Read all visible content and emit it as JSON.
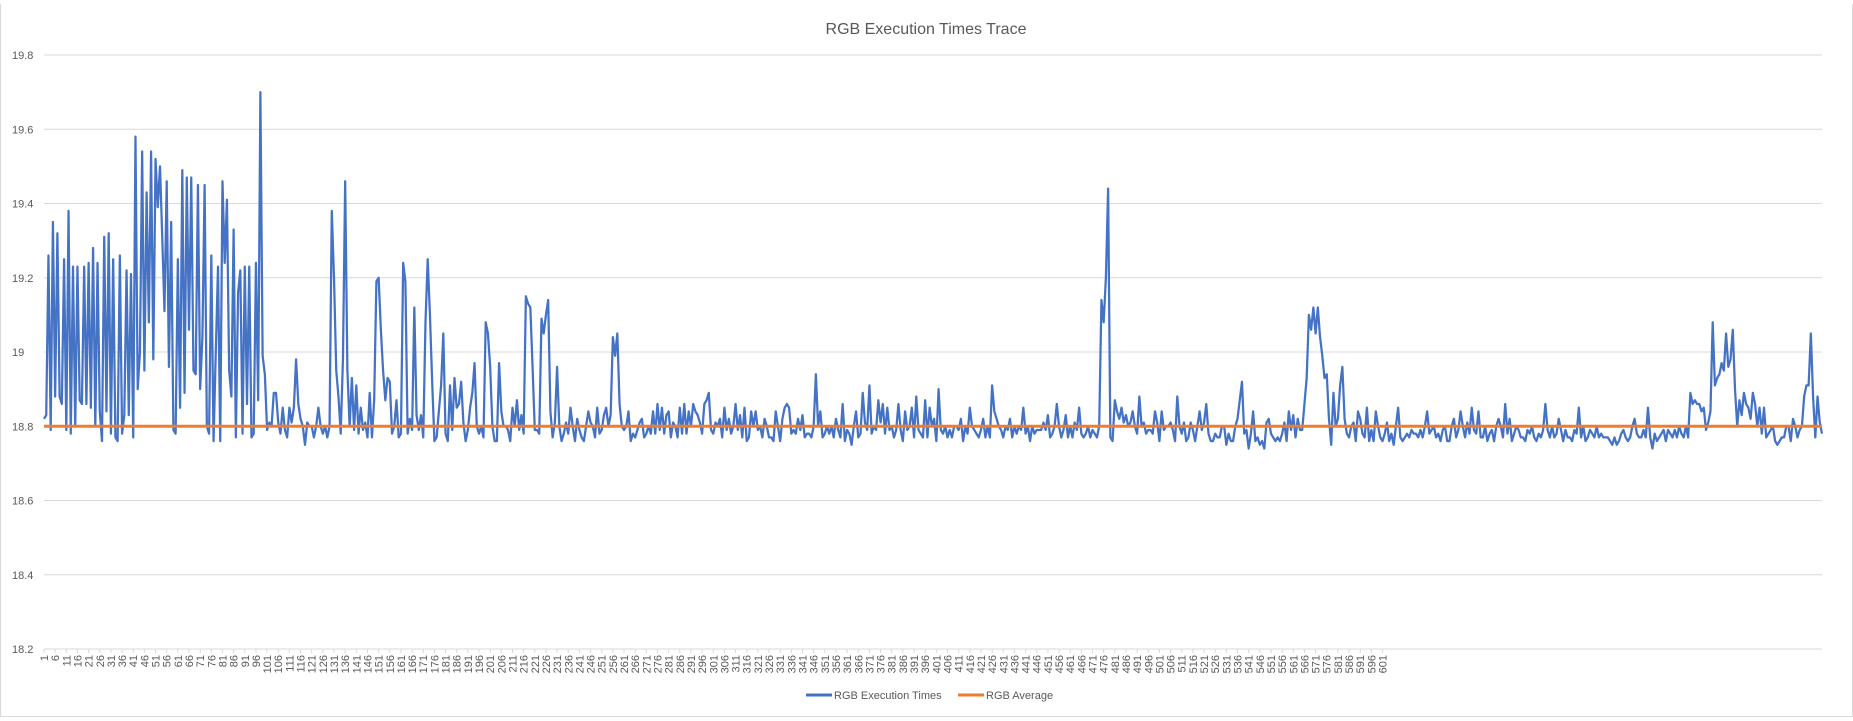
{
  "chart_data": {
    "type": "line",
    "title": "RGB Execution Times Trace",
    "xlabel": "",
    "ylabel": "",
    "x_range": [
      1,
      603
    ],
    "x_tick_step": 5,
    "ylim": [
      18.2,
      19.8
    ],
    "y_ticks": [
      "19.8",
      "19.6",
      "19.4",
      "19.2",
      "19",
      "18.8",
      "18.6",
      "18.4",
      "18.2"
    ],
    "grid": "horizontal",
    "legend_position": "bottom",
    "series": [
      {
        "name": "RGB Execution Times",
        "color": "#4472C4",
        "values": [
          18.82,
          18.83,
          19.26,
          18.79,
          19.35,
          18.88,
          19.32,
          18.88,
          18.86,
          19.25,
          18.79,
          19.38,
          18.78,
          19.23,
          18.8,
          19.23,
          18.87,
          18.86,
          19.23,
          18.86,
          19.24,
          18.85,
          19.28,
          18.8,
          19.24,
          18.84,
          18.76,
          19.31,
          18.84,
          19.32,
          18.78,
          19.25,
          18.77,
          18.76,
          19.26,
          18.78,
          18.83,
          19.22,
          18.83,
          19.21,
          18.77,
          19.58,
          18.9,
          19.0,
          19.54,
          18.95,
          19.43,
          19.08,
          19.54,
          18.98,
          19.52,
          19.39,
          19.5,
          19.31,
          19.11,
          19.46,
          18.96,
          19.35,
          18.79,
          18.78,
          19.25,
          18.85,
          19.49,
          18.89,
          19.47,
          19.06,
          19.47,
          18.95,
          18.94,
          19.45,
          18.9,
          19.04,
          19.45,
          18.8,
          18.78,
          19.26,
          18.76,
          19.0,
          19.23,
          18.76,
          19.46,
          19.24,
          19.41,
          18.95,
          18.88,
          19.33,
          18.77,
          19.16,
          19.22,
          18.78,
          19.23,
          18.86,
          19.23,
          18.77,
          18.78,
          19.24,
          18.87,
          19.7,
          18.99,
          18.94,
          18.79,
          18.81,
          18.8,
          18.89,
          18.89,
          18.81,
          18.78,
          18.85,
          18.79,
          18.77,
          18.85,
          18.81,
          18.85,
          18.98,
          18.86,
          18.82,
          18.8,
          18.75,
          18.81,
          18.8,
          18.8,
          18.77,
          18.8,
          18.85,
          18.8,
          18.78,
          18.8,
          18.77,
          18.8,
          19.38,
          19.2,
          18.95,
          18.88,
          18.78,
          18.98,
          19.46,
          18.95,
          18.8,
          18.93,
          18.79,
          18.91,
          18.78,
          18.85,
          18.79,
          18.81,
          18.77,
          18.89,
          18.77,
          18.87,
          19.19,
          19.2,
          19.06,
          18.95,
          18.87,
          18.93,
          18.92,
          18.78,
          18.8,
          18.87,
          18.77,
          18.78,
          19.24,
          19.19,
          18.78,
          18.82,
          18.79,
          19.12,
          18.83,
          18.79,
          18.83,
          18.77,
          19.08,
          19.25,
          19.1,
          18.92,
          18.76,
          18.77,
          18.84,
          18.91,
          19.05,
          18.78,
          18.76,
          18.91,
          18.79,
          18.93,
          18.85,
          18.86,
          18.92,
          18.81,
          18.76,
          18.79,
          18.85,
          18.89,
          18.97,
          18.8,
          18.78,
          18.8,
          18.77,
          19.08,
          19.05,
          18.96,
          18.8,
          18.76,
          18.76,
          18.97,
          18.84,
          18.8,
          18.8,
          18.79,
          18.76,
          18.85,
          18.8,
          18.87,
          18.79,
          18.83,
          18.78,
          19.15,
          19.13,
          19.12,
          18.96,
          18.79,
          18.79,
          18.78,
          19.09,
          19.05,
          19.1,
          19.14,
          18.84,
          18.77,
          18.81,
          18.96,
          18.8,
          18.76,
          18.78,
          18.81,
          18.78,
          18.85,
          18.8,
          18.76,
          18.82,
          18.79,
          18.77,
          18.76,
          18.8,
          18.84,
          18.81,
          18.8,
          18.77,
          18.85,
          18.78,
          18.79,
          18.83,
          18.85,
          18.8,
          18.83,
          19.04,
          18.99,
          19.05,
          18.86,
          18.8,
          18.79,
          18.8,
          18.84,
          18.76,
          18.78,
          18.77,
          18.79,
          18.81,
          18.82,
          18.77,
          18.78,
          18.8,
          18.78,
          18.84,
          18.78,
          18.86,
          18.79,
          18.85,
          18.78,
          18.83,
          18.84,
          18.77,
          18.81,
          18.8,
          18.77,
          18.85,
          18.78,
          18.86,
          18.78,
          18.84,
          18.8,
          18.86,
          18.84,
          18.83,
          18.81,
          18.78,
          18.86,
          18.87,
          18.89,
          18.79,
          18.78,
          18.81,
          18.8,
          18.82,
          18.77,
          18.85,
          18.79,
          18.82,
          18.78,
          18.8,
          18.86,
          18.79,
          18.83,
          18.77,
          18.85,
          18.76,
          18.77,
          18.84,
          18.8,
          18.84,
          18.79,
          18.8,
          18.77,
          18.82,
          18.8,
          18.77,
          18.77,
          18.76,
          18.84,
          18.8,
          18.76,
          18.82,
          18.85,
          18.86,
          18.85,
          18.78,
          18.79,
          18.78,
          18.82,
          18.79,
          18.83,
          18.77,
          18.78,
          18.78,
          18.77,
          18.8,
          18.94,
          18.8,
          18.84,
          18.77,
          18.78,
          18.8,
          18.78,
          18.8,
          18.77,
          18.82,
          18.79,
          18.77,
          18.86,
          18.76,
          18.79,
          18.78,
          18.75,
          18.8,
          18.84,
          18.77,
          18.78,
          18.89,
          18.81,
          18.79,
          18.91,
          18.78,
          18.8,
          18.79,
          18.87,
          18.81,
          18.86,
          18.78,
          18.85,
          18.79,
          18.8,
          18.77,
          18.79,
          18.86,
          18.79,
          18.76,
          18.84,
          18.79,
          18.8,
          18.85,
          18.77,
          18.88,
          18.79,
          18.78,
          18.77,
          18.87,
          18.77,
          18.85,
          18.8,
          18.82,
          18.76,
          18.9,
          18.79,
          18.78,
          18.8,
          18.77,
          18.79,
          18.77,
          18.8,
          18.8,
          18.79,
          18.82,
          18.76,
          18.8,
          18.78,
          18.85,
          18.8,
          18.79,
          18.78,
          18.77,
          18.79,
          18.82,
          18.77,
          18.8,
          18.77,
          18.91,
          18.84,
          18.82,
          18.8,
          18.79,
          18.77,
          18.8,
          18.79,
          18.82,
          18.77,
          18.8,
          18.78,
          18.8,
          18.79,
          18.85,
          18.78,
          18.8,
          18.76,
          18.8,
          18.78,
          18.79,
          18.79,
          18.79,
          18.81,
          18.79,
          18.83,
          18.77,
          18.78,
          18.8,
          18.86,
          18.8,
          18.77,
          18.79,
          18.83,
          18.77,
          18.8,
          18.77,
          18.81,
          18.79,
          18.85,
          18.78,
          18.77,
          18.78,
          18.8,
          18.77,
          18.79,
          18.78,
          18.77,
          18.8,
          19.14,
          19.08,
          19.2,
          19.44,
          18.77,
          18.76,
          18.87,
          18.84,
          18.82,
          18.85,
          18.81,
          18.83,
          18.8,
          18.81,
          18.84,
          18.8,
          18.78,
          18.88,
          18.8,
          18.81,
          18.78,
          18.79,
          18.79,
          18.78,
          18.84,
          18.81,
          18.76,
          18.84,
          18.79,
          18.8,
          18.8,
          18.81,
          18.79,
          18.76,
          18.88,
          18.8,
          18.78,
          18.81,
          18.76,
          18.77,
          18.81,
          18.79,
          18.76,
          18.8,
          18.84,
          18.79,
          18.81,
          18.86,
          18.78,
          18.76,
          18.76,
          18.78,
          18.77,
          18.77,
          18.8,
          18.8,
          18.75,
          18.78,
          18.76,
          18.76,
          18.8,
          18.82,
          18.87,
          18.92,
          18.78,
          18.79,
          18.74,
          18.78,
          18.84,
          18.76,
          18.77,
          18.75,
          18.76,
          18.74,
          18.81,
          18.82,
          18.78,
          18.77,
          18.76,
          18.77,
          18.76,
          18.78,
          18.81,
          18.76,
          18.84,
          18.79,
          18.83,
          18.77,
          18.82,
          18.79,
          18.79,
          18.86,
          18.93,
          19.1,
          19.06,
          19.12,
          19.05,
          19.12,
          19.04,
          18.99,
          18.93,
          18.94,
          18.82,
          18.75,
          18.89,
          18.8,
          18.82,
          18.91,
          18.96,
          18.82,
          18.78,
          18.77,
          18.8,
          18.81,
          18.76,
          18.84,
          18.82,
          18.78,
          18.77,
          18.85,
          18.76,
          18.79,
          18.76,
          18.84,
          18.8,
          18.77,
          18.76,
          18.78,
          18.81,
          18.76,
          18.78,
          18.75,
          18.8,
          18.85,
          18.77,
          18.76,
          18.77,
          18.78,
          18.77,
          18.79,
          18.78,
          18.78,
          18.77,
          18.79,
          18.77,
          18.8,
          18.84,
          18.78,
          18.79,
          18.8,
          18.77,
          18.78,
          18.76,
          18.79,
          18.8,
          18.76,
          18.76,
          18.8,
          18.82,
          18.77,
          18.79,
          18.84,
          18.8,
          18.77,
          18.81,
          18.78,
          18.85,
          18.79,
          18.78,
          18.84,
          18.77,
          18.77,
          18.8,
          18.76,
          18.78,
          18.79,
          18.76,
          18.8,
          18.82,
          18.8,
          18.77,
          18.86,
          18.78,
          18.82,
          18.76,
          18.78,
          18.8,
          18.79,
          18.77,
          18.77,
          18.76,
          18.79,
          18.78,
          18.8,
          18.77,
          18.76,
          18.78,
          18.77,
          18.79,
          18.86,
          18.79,
          18.77,
          18.8,
          18.77,
          18.78,
          18.82,
          18.79,
          18.76,
          18.79,
          18.77,
          18.77,
          18.76,
          18.79,
          18.78,
          18.85,
          18.77,
          18.8,
          18.76,
          18.77,
          18.79,
          18.78,
          18.77,
          18.8,
          18.77,
          18.78,
          18.77,
          18.77,
          18.77,
          18.76,
          18.75,
          18.77,
          18.75,
          18.76,
          18.78,
          18.79,
          18.77,
          18.76,
          18.77,
          18.8,
          18.82,
          18.78,
          18.77,
          18.77,
          18.79,
          18.77,
          18.85,
          18.77,
          18.74,
          18.78,
          18.76,
          18.77,
          18.78,
          18.79,
          18.76,
          18.79,
          18.78,
          18.77,
          18.79,
          18.77,
          18.8,
          18.78,
          18.77,
          18.8,
          18.77,
          18.89,
          18.86,
          18.87,
          18.86,
          18.86,
          18.84,
          18.85,
          18.79,
          18.81,
          18.84,
          19.08,
          18.91,
          18.93,
          18.94,
          18.97,
          18.95,
          19.05,
          18.96,
          18.98,
          19.06,
          18.9,
          18.8,
          18.87,
          18.83,
          18.89,
          18.86,
          18.85,
          18.82,
          18.89,
          18.86,
          18.8,
          18.85,
          18.78,
          18.85,
          18.77,
          18.78,
          18.79,
          18.8,
          18.76,
          18.75,
          18.76,
          18.77,
          18.77,
          18.8,
          18.8,
          18.76,
          18.82,
          18.8,
          18.77,
          18.79,
          18.8,
          18.88,
          18.91,
          18.91,
          19.05,
          18.88,
          18.77,
          18.88,
          18.81,
          18.78
        ]
      },
      {
        "name": "RGB Average",
        "color": "#ED7D31",
        "values": [
          18.8,
          18.8
        ]
      }
    ]
  }
}
